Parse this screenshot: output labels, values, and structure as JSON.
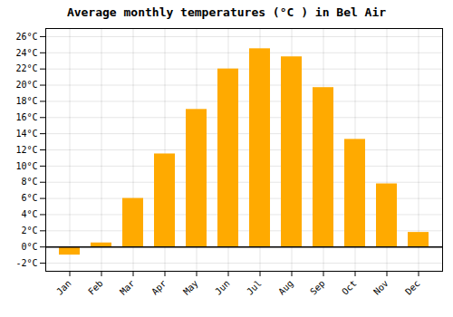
{
  "chart_data": {
    "type": "bar",
    "title": "Average monthly temperatures (°C ) in Bel Air",
    "categories": [
      "Jan",
      "Feb",
      "Mar",
      "Apr",
      "May",
      "Jun",
      "Jul",
      "Aug",
      "Sep",
      "Oct",
      "Nov",
      "Dec"
    ],
    "values": [
      -1.0,
      0.5,
      6.0,
      11.5,
      17.0,
      22.0,
      24.5,
      23.5,
      19.7,
      13.3,
      7.8,
      1.8
    ],
    "color": "#FFAA00",
    "ylim": [
      -3,
      27
    ],
    "yticks": [
      {
        "value": -2,
        "label": "-2°C"
      },
      {
        "value": 0,
        "label": "0°C"
      },
      {
        "value": 2,
        "label": "2°C"
      },
      {
        "value": 4,
        "label": "4°C"
      },
      {
        "value": 6,
        "label": "6°C"
      },
      {
        "value": 8,
        "label": "8°C"
      },
      {
        "value": 10,
        "label": "10°C"
      },
      {
        "value": 12,
        "label": "12°C"
      },
      {
        "value": 14,
        "label": "14°C"
      },
      {
        "value": 16,
        "label": "16°C"
      },
      {
        "value": 18,
        "label": "18°C"
      },
      {
        "value": 20,
        "label": "20°C"
      },
      {
        "value": 22,
        "label": "22°C"
      },
      {
        "value": 24,
        "label": "24°C"
      },
      {
        "value": 26,
        "label": "26°C"
      }
    ],
    "grid": true
  }
}
